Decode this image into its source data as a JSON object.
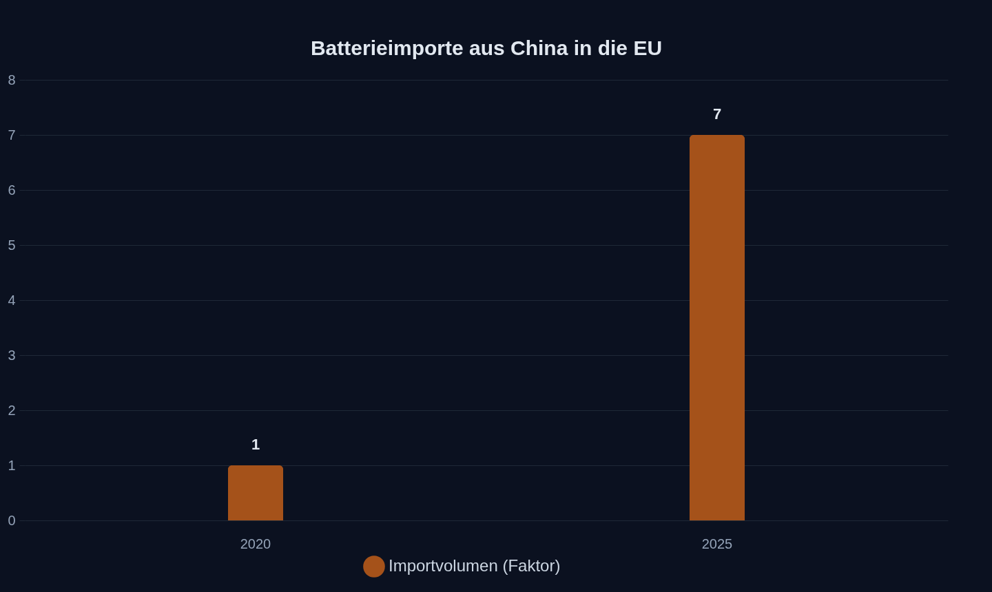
{
  "chart_data": {
    "type": "bar",
    "title": "Batterieimporte aus China in die EU",
    "categories": [
      "2020",
      "2025"
    ],
    "series": [
      {
        "name": "Importvolumen (Faktor)",
        "color": "#a5521a",
        "values": [
          1,
          7
        ]
      }
    ],
    "ylim": [
      0,
      8
    ],
    "yticks": [
      0,
      1,
      2,
      3,
      4,
      5,
      6,
      7,
      8
    ],
    "grid": "y",
    "legend": "bottom",
    "data_labels": true
  }
}
